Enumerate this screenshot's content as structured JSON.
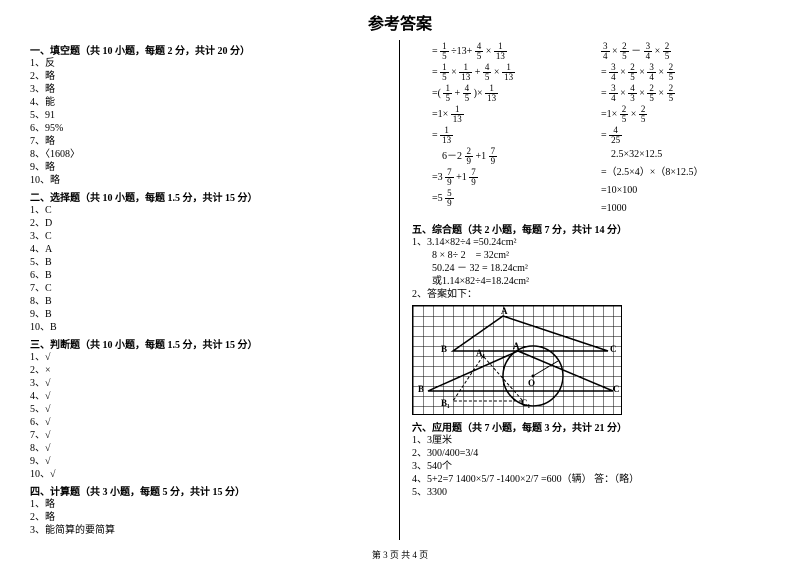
{
  "title": "参考答案",
  "footer": "第 3 页 共 4 页",
  "sections": {
    "s1": {
      "header": "一、填空题（共 10 小题，每题 2 分，共计 20 分）",
      "items": [
        "1、反",
        "2、略",
        "3、略",
        "4、能",
        "5、91",
        "6、95%",
        "7、略",
        "8、〈1608〉",
        "9、略",
        "10、略"
      ]
    },
    "s2": {
      "header": "二、选择题（共 10 小题，每题 1.5 分，共计 15 分）",
      "items": [
        "1、C",
        "2、D",
        "3、C",
        "4、A",
        "5、B",
        "6、B",
        "7、C",
        "8、B",
        "9、B",
        "10、B"
      ]
    },
    "s3": {
      "header": "三、判断题（共 10 小题，每题 1.5 分，共计 15 分）",
      "items": [
        "1、√",
        "2、×",
        "3、√",
        "4、√",
        "5、√",
        "6、√",
        "7、√",
        "8、√",
        "9、√",
        "10、√"
      ]
    },
    "s4": {
      "header": "四、计算题（共 3 小题，每题 5 分，共计 15 分）",
      "items": [
        "1、略",
        "2、略",
        "3、能简算的要简算"
      ]
    },
    "s5": {
      "header": "五、综合题（共 2 小题，每题 7 分，共计 14 分）",
      "items": [
        "1、3.14×82÷4 =50.24cm²",
        "　　8 × 8÷ 2　= 32cm²",
        "　　50.24 － 32 = 18.24cm²",
        "　　或1.14×82÷4=18.24cm²",
        "2、答案如下："
      ]
    },
    "s6": {
      "header": "六、应用题（共 7 小题，每题 3 分，共计 21 分）",
      "items": [
        "1、3厘米",
        "2、300/400=3/4",
        "3、540个",
        "4、5+2=7 1400×5/7 -1400×2/7 =600（辆） 答：（略）",
        "5、3300"
      ]
    }
  },
  "math": {
    "col1": [
      {
        "t": "frac_expr",
        "s": "= 1/5 ÷13+ 4/5 × 1/13"
      },
      {
        "t": "frac_expr",
        "s": "= 1/5 × 1/13 + 4/5 × 1/13"
      },
      {
        "t": "frac_expr",
        "s": "=( 1/5 + 4/5 )× 1/13"
      },
      {
        "t": "frac_expr",
        "s": "=1× 1/13"
      },
      {
        "t": "frac_expr",
        "s": "= 1/13"
      },
      {
        "t": "frac_expr",
        "s": "　6－2 2/9 +1 7/9"
      },
      {
        "t": "frac_expr",
        "s": "=3 7/9 +1 7/9"
      },
      {
        "t": "frac_expr",
        "s": "=5 5/9"
      }
    ],
    "col2": [
      {
        "t": "frac_expr",
        "s": "  3/4 × 2/5 － 3/4 × 2/5"
      },
      {
        "t": "frac_expr",
        "s": "= 3/4 × 2/5 × 3/4 × 2/5"
      },
      {
        "t": "frac_expr",
        "s": "= 3/4 × 4/3 × 2/5 × 2/5"
      },
      {
        "t": "frac_expr",
        "s": "=1× 2/5 × 2/5"
      },
      {
        "t": "frac_expr",
        "s": "= 4/25"
      },
      {
        "t": "plain",
        "s": "　2.5×32×12.5"
      },
      {
        "t": "plain",
        "s": "=（2.5×4）×（8×12.5）"
      },
      {
        "t": "plain",
        "s": "=10×100"
      },
      {
        "t": "plain",
        "s": "=1000"
      }
    ]
  },
  "figure": {
    "labels": {
      "A": "A",
      "B": "B",
      "C": "C",
      "A1": "A₁",
      "B1": "B₁",
      "C1": "C₁",
      "O": "O"
    }
  }
}
